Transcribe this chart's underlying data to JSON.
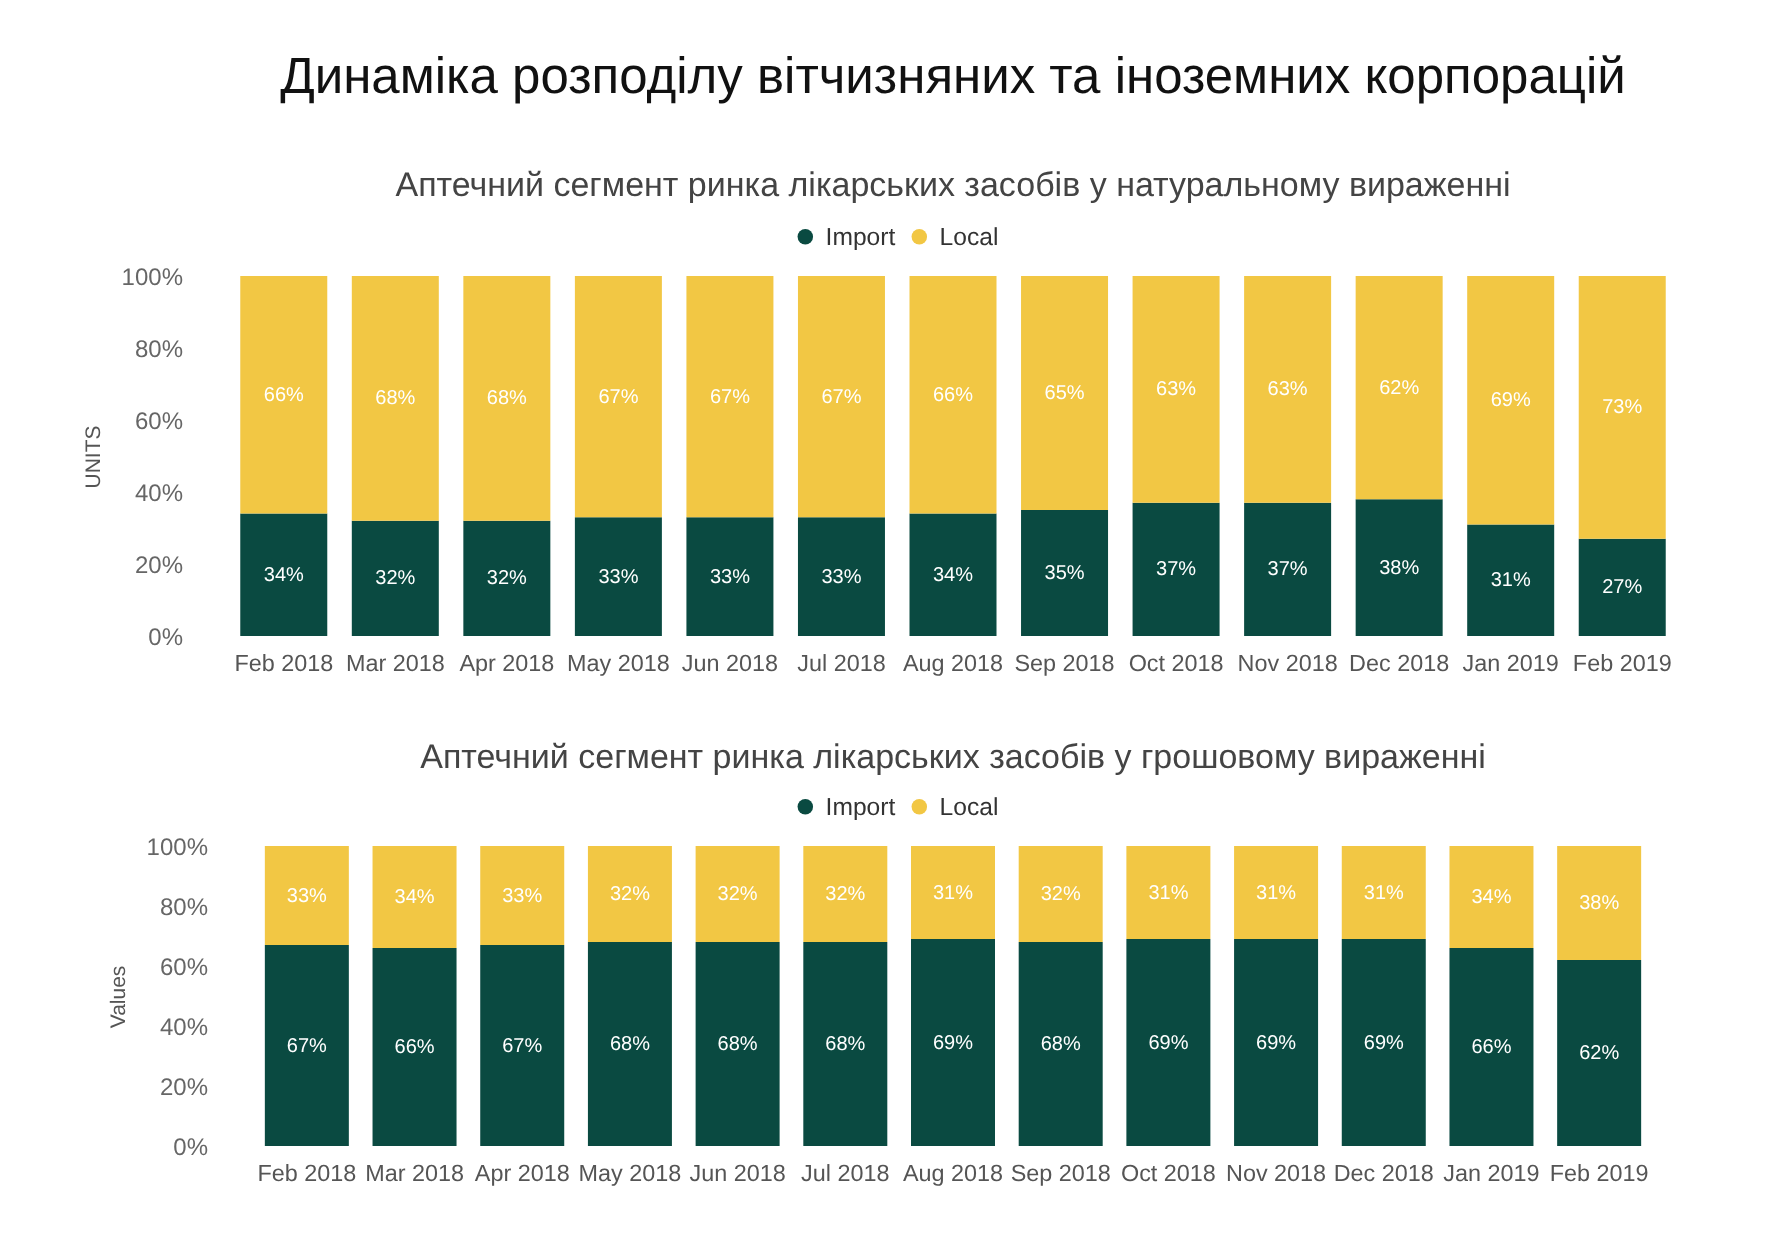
{
  "chart_data": [
    {
      "type": "bar",
      "title": "Динаміка розподілу вітчизняних та іноземних корпорацій",
      "subtitle": "Аптечний сегмент ринка лікарських засобів у натуральному вираженні",
      "ylabel": "UNITS",
      "categories": [
        "Feb 2018",
        "Mar 2018",
        "Apr 2018",
        "May 2018",
        "Jun 2018",
        "Jul 2018",
        "Aug 2018",
        "Sep 2018",
        "Oct 2018",
        "Nov 2018",
        "Dec 2018",
        "Jan 2019",
        "Feb 2019"
      ],
      "stacked": true,
      "ylim": [
        0,
        100
      ],
      "yticks": [
        {
          "value": 0,
          "label": "0%"
        },
        {
          "value": 20,
          "label": "20%"
        },
        {
          "value": 40,
          "label": "40%"
        },
        {
          "value": 60,
          "label": "60%"
        },
        {
          "value": 80,
          "label": "80%"
        },
        {
          "value": 100,
          "label": "100%"
        }
      ],
      "legend": "top",
      "series": [
        {
          "name": "Import",
          "color": "#0a4a41",
          "values": [
            34,
            32,
            32,
            33,
            33,
            33,
            34,
            35,
            37,
            37,
            38,
            31,
            27
          ],
          "value_labels": [
            "34%",
            "32%",
            "32%",
            "33%",
            "33%",
            "33%",
            "34%",
            "35%",
            "37%",
            "37%",
            "38%",
            "31%",
            "27%"
          ]
        },
        {
          "name": "Local",
          "color": "#f2c744",
          "values": [
            66,
            68,
            68,
            67,
            67,
            67,
            66,
            65,
            63,
            63,
            62,
            69,
            73
          ],
          "value_labels": [
            "66%",
            "68%",
            "68%",
            "67%",
            "67%",
            "67%",
            "66%",
            "65%",
            "63%",
            "63%",
            "62%",
            "69%",
            "73%"
          ]
        }
      ]
    },
    {
      "type": "bar",
      "title": "Аптечний сегмент ринка лікарських засобів у грошовому вираженні",
      "ylabel": "Values",
      "categories": [
        "Feb 2018",
        "Mar 2018",
        "Apr 2018",
        "May 2018",
        "Jun 2018",
        "Jul 2018",
        "Aug 2018",
        "Sep 2018",
        "Oct 2018",
        "Nov 2018",
        "Dec 2018",
        "Jan 2019",
        "Feb 2019"
      ],
      "stacked": true,
      "ylim": [
        0,
        100
      ],
      "yticks": [
        {
          "value": 0,
          "label": "0%"
        },
        {
          "value": 20,
          "label": "20%"
        },
        {
          "value": 40,
          "label": "40%"
        },
        {
          "value": 60,
          "label": "60%"
        },
        {
          "value": 80,
          "label": "80%"
        },
        {
          "value": 100,
          "label": "100%"
        }
      ],
      "legend": "top",
      "series": [
        {
          "name": "Import",
          "color": "#0a4a41",
          "values": [
            67,
            66,
            67,
            68,
            68,
            68,
            69,
            68,
            69,
            69,
            69,
            66,
            62
          ],
          "value_labels": [
            "67%",
            "66%",
            "67%",
            "68%",
            "68%",
            "68%",
            "69%",
            "68%",
            "69%",
            "69%",
            "69%",
            "66%",
            "62%"
          ]
        },
        {
          "name": "Local",
          "color": "#f2c744",
          "values": [
            33,
            34,
            33,
            32,
            32,
            32,
            31,
            32,
            31,
            31,
            31,
            34,
            38
          ],
          "value_labels": [
            "33%",
            "34%",
            "33%",
            "32%",
            "32%",
            "32%",
            "31%",
            "32%",
            "31%",
            "31%",
            "31%",
            "34%",
            "38%"
          ]
        }
      ]
    }
  ]
}
